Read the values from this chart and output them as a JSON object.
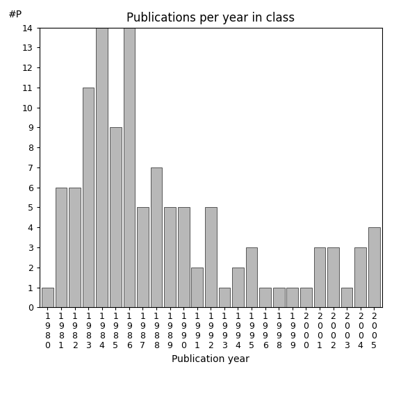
{
  "title": "Publications per year in class",
  "xlabel": "Publication year",
  "ylabel": "#P",
  "categories": [
    "1980",
    "1981",
    "1982",
    "1983",
    "1984",
    "1985",
    "1986",
    "1987",
    "1988",
    "1989",
    "1990",
    "1991",
    "1992",
    "1993",
    "1994",
    "1995",
    "1996",
    "1998",
    "1999",
    "2000",
    "2001",
    "2002",
    "2003",
    "2004",
    "2005"
  ],
  "values": [
    1,
    6,
    6,
    11,
    14,
    9,
    14,
    5,
    7,
    5,
    5,
    2,
    5,
    1,
    2,
    3,
    1,
    1,
    1,
    1,
    3,
    3,
    1,
    3,
    4
  ],
  "bar_color": "#b8b8b8",
  "bar_edge_color": "#555555",
  "ylim": [
    0,
    14
  ],
  "yticks": [
    0,
    1,
    2,
    3,
    4,
    5,
    6,
    7,
    8,
    9,
    10,
    11,
    12,
    13,
    14
  ],
  "title_fontsize": 12,
  "axis_label_fontsize": 10,
  "tick_fontsize": 9,
  "background_color": "#ffffff"
}
